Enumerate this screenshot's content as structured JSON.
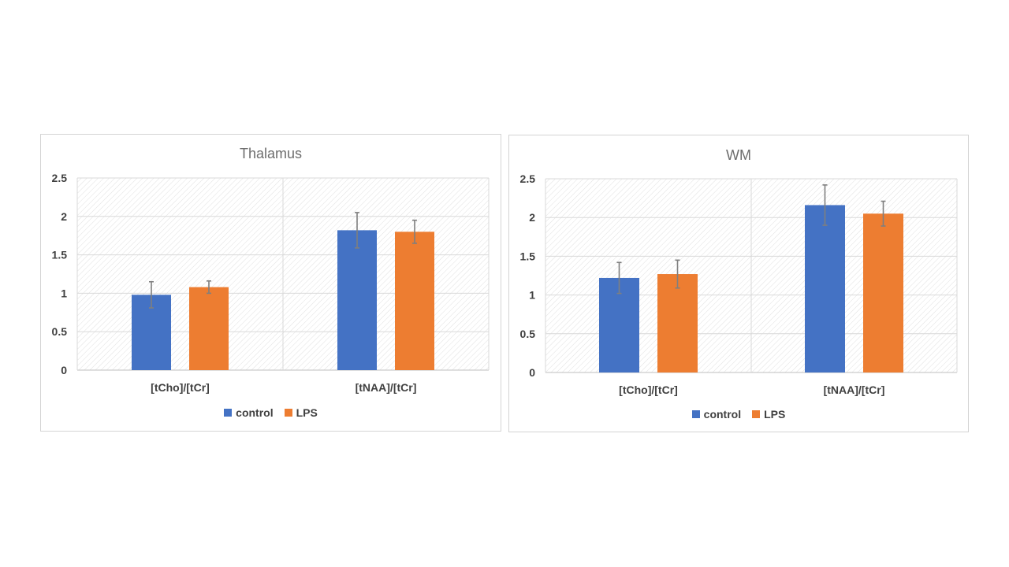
{
  "colors": {
    "control": "#4472c4",
    "lps": "#ed7d31",
    "error_bar": "#7f7f7f",
    "grid": "#d9d9d9",
    "hatch": "#e0e0e0"
  },
  "chart_data": [
    {
      "type": "bar",
      "title": "Thalamus",
      "categories": [
        "[tCho]/[tCr]",
        "[tNAA]/[tCr]"
      ],
      "series": [
        {
          "name": "control",
          "values": [
            0.98,
            1.82
          ],
          "errors": [
            0.17,
            0.23
          ]
        },
        {
          "name": "LPS",
          "values": [
            1.08,
            1.8
          ],
          "errors": [
            0.08,
            0.15
          ]
        }
      ],
      "yticks": [
        "0",
        "0.5",
        "1",
        "1.5",
        "2",
        "2.5"
      ],
      "ylim": [
        0,
        2.5
      ],
      "xlabel": "",
      "ylabel": "",
      "legend": "bottom",
      "grid": true
    },
    {
      "type": "bar",
      "title": "WM",
      "categories": [
        "[tCho]/[tCr]",
        "[tNAA]/[tCr]"
      ],
      "series": [
        {
          "name": "control",
          "values": [
            1.22,
            2.16
          ],
          "errors": [
            0.2,
            0.26
          ]
        },
        {
          "name": "LPS",
          "values": [
            1.27,
            2.05
          ],
          "errors": [
            0.18,
            0.16
          ]
        }
      ],
      "yticks": [
        "0",
        "0.5",
        "1",
        "1.5",
        "2",
        "2.5"
      ],
      "ylim": [
        0,
        2.5
      ],
      "xlabel": "",
      "ylabel": "",
      "legend": "bottom",
      "grid": true
    }
  ]
}
